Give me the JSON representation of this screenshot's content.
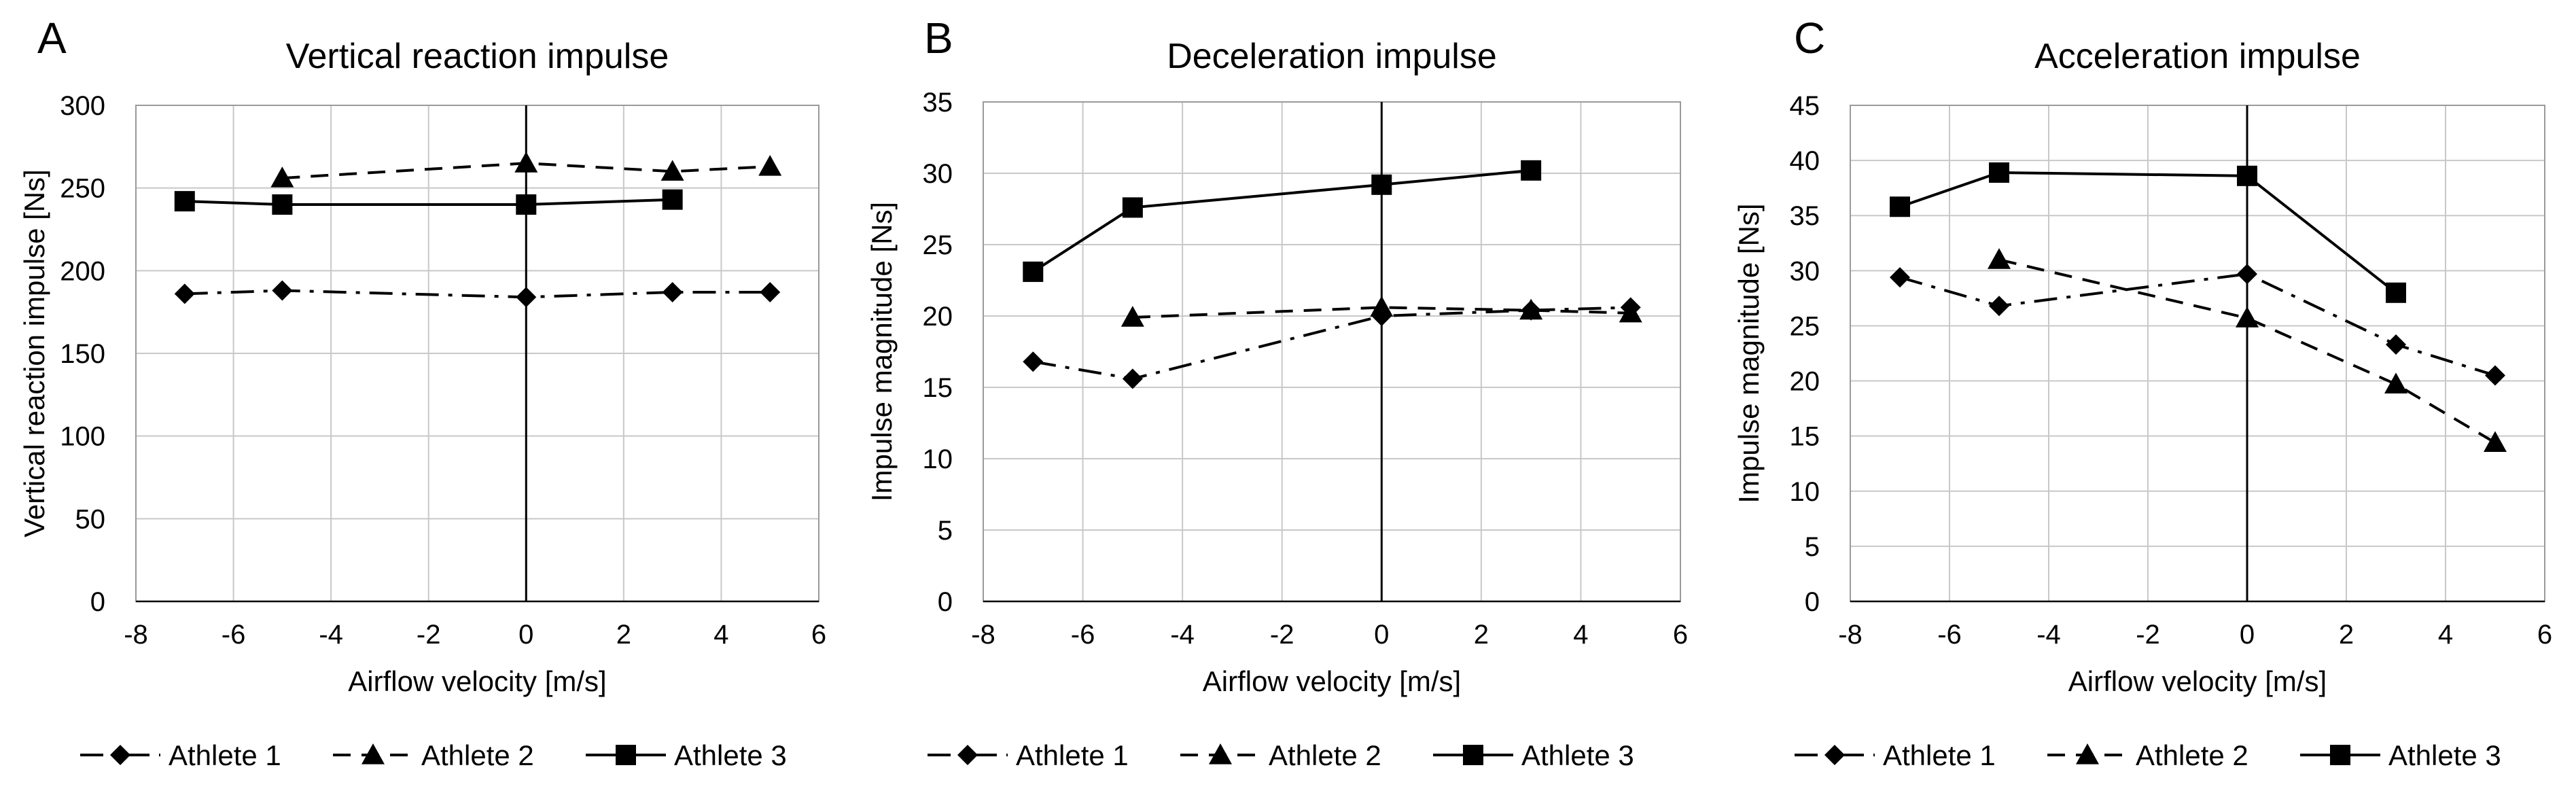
{
  "chart_data": [
    {
      "type": "line",
      "panel_label": "A",
      "title": "Vertical reaction impulse",
      "xlabel": "Airflow velocity [m/s]",
      "ylabel": "Vertical reaction impulse [Ns]",
      "xlim": [
        -8,
        6
      ],
      "ylim": [
        0,
        300
      ],
      "xticks": [
        -8,
        -6,
        -4,
        -2,
        0,
        2,
        4,
        6
      ],
      "yticks": [
        0,
        50,
        100,
        150,
        200,
        250,
        300
      ],
      "grid": true,
      "legend_position": "bottom",
      "series": [
        {
          "name": "Athlete 1",
          "marker": "diamond",
          "line": "dashdot",
          "x": [
            -7,
            -5,
            0,
            3,
            5
          ],
          "y": [
            186,
            188,
            184,
            187,
            187
          ]
        },
        {
          "name": "Athlete 2",
          "marker": "triangle",
          "line": "dashed",
          "x": [
            -5,
            0,
            3,
            5
          ],
          "y": [
            256,
            265,
            260,
            263
          ]
        },
        {
          "name": "Athlete 3",
          "marker": "square",
          "line": "solid",
          "x": [
            -7,
            -5,
            0,
            3
          ],
          "y": [
            242,
            240,
            240,
            243
          ]
        }
      ]
    },
    {
      "type": "line",
      "panel_label": "B",
      "title": "Deceleration impulse",
      "xlabel": "Airflow velocity [m/s]",
      "ylabel": "Impulse magnitude [Ns]",
      "xlim": [
        -8,
        6
      ],
      "ylim": [
        0,
        35
      ],
      "xticks": [
        -8,
        -6,
        -4,
        -2,
        0,
        2,
        4,
        6
      ],
      "yticks": [
        0,
        5,
        10,
        15,
        20,
        25,
        30,
        35
      ],
      "grid": true,
      "legend_position": "bottom",
      "series": [
        {
          "name": "Athlete 1",
          "marker": "diamond",
          "line": "dashdot",
          "x": [
            -7,
            -5,
            0,
            3,
            5
          ],
          "y": [
            16.8,
            15.6,
            20.0,
            20.4,
            20.6
          ]
        },
        {
          "name": "Athlete 2",
          "marker": "triangle",
          "line": "dashed",
          "x": [
            -5,
            0,
            3,
            5
          ],
          "y": [
            19.9,
            20.6,
            20.4,
            20.2
          ]
        },
        {
          "name": "Athlete 3",
          "marker": "square",
          "line": "solid",
          "x": [
            -7,
            -5,
            0,
            3
          ],
          "y": [
            23.1,
            27.6,
            29.2,
            30.2
          ]
        }
      ]
    },
    {
      "type": "line",
      "panel_label": "C",
      "title": "Acceleration impulse",
      "xlabel": "Airflow velocity [m/s]",
      "ylabel": "Impulse  magnitude [Ns]",
      "xlim": [
        -8,
        6
      ],
      "ylim": [
        0,
        45
      ],
      "xticks": [
        -8,
        -6,
        -4,
        -2,
        0,
        2,
        4,
        6
      ],
      "yticks": [
        0,
        5,
        10,
        15,
        20,
        25,
        30,
        35,
        40,
        45
      ],
      "grid": true,
      "legend_position": "bottom",
      "series": [
        {
          "name": "Athlete 1",
          "marker": "diamond",
          "line": "dashdot",
          "x": [
            -7,
            -5,
            0,
            3,
            5
          ],
          "y": [
            29.4,
            26.8,
            29.7,
            23.3,
            20.5
          ]
        },
        {
          "name": "Athlete 2",
          "marker": "triangle",
          "line": "dashed",
          "x": [
            -5,
            0,
            3,
            5
          ],
          "y": [
            31.0,
            25.7,
            19.7,
            14.4
          ]
        },
        {
          "name": "Athlete 3",
          "marker": "square",
          "line": "solid",
          "x": [
            -7,
            -5,
            0,
            3
          ],
          "y": [
            35.8,
            38.9,
            38.6,
            28.0
          ]
        }
      ]
    }
  ]
}
